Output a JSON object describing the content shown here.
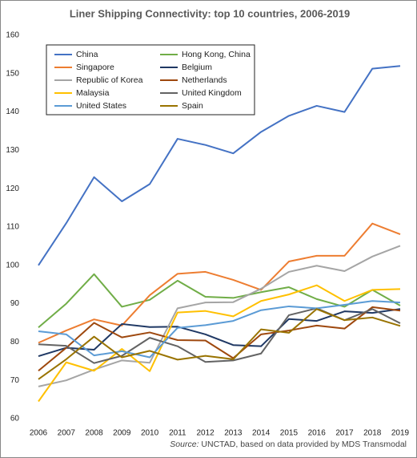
{
  "chart_data": {
    "type": "line",
    "title": "Liner Shipping Connectivity: top 10 countries, 2006-2019",
    "source_label": "Source:",
    "source": "UNCTAD, based on data provided by MDS Transmodal",
    "categories": [
      "2006",
      "2007",
      "2008",
      "2009",
      "2010",
      "2011",
      "2012",
      "2013",
      "2014",
      "2015",
      "2016",
      "2017",
      "2018",
      "2019"
    ],
    "ylim": [
      60,
      160
    ],
    "yticks": [
      60,
      70,
      80,
      90,
      100,
      110,
      120,
      130,
      140,
      150,
      160
    ],
    "grid": false,
    "series": [
      {
        "name": "China",
        "color": "#4472c4",
        "values": [
          100,
          111,
          123,
          116.7,
          121.2,
          133,
          131.4,
          129.2,
          134.8,
          139,
          141.6,
          140,
          151.3,
          152
        ]
      },
      {
        "name": "Hong Kong, China",
        "color": "#70ad47",
        "values": [
          83.8,
          90,
          97.7,
          89.2,
          91,
          96,
          91.8,
          91.5,
          93,
          94.3,
          91.2,
          89.2,
          93.6,
          89.5
        ]
      },
      {
        "name": "Singapore",
        "color": "#ed7d31",
        "values": [
          79.8,
          83,
          85.9,
          84.3,
          92.2,
          97.8,
          98.3,
          96.2,
          93.6,
          101,
          102.5,
          102.5,
          110.9,
          108.1
        ]
      },
      {
        "name": "Belgium",
        "color": "#1f3864",
        "values": [
          76.3,
          78.5,
          78,
          84.7,
          83.9,
          84,
          82,
          79.2,
          78.9,
          86,
          85.5,
          88,
          87.6,
          88.6
        ]
      },
      {
        "name": "Republic of Korea",
        "color": "#a5a5a5",
        "values": [
          68.4,
          70,
          72.8,
          75.2,
          74.6,
          88.8,
          90.3,
          90.4,
          93.9,
          98.3,
          99.9,
          98.5,
          102.3,
          105.1
        ]
      },
      {
        "name": "Netherlands",
        "color": "#9e480e",
        "values": [
          72.5,
          78.5,
          85,
          81.2,
          82.5,
          80.5,
          80.4,
          75.8,
          82,
          83,
          84.3,
          83.5,
          89.1,
          88.2
        ]
      },
      {
        "name": "Malaysia",
        "color": "#ffc000",
        "values": [
          64.5,
          74.7,
          72.5,
          78.2,
          72.4,
          87.7,
          88.1,
          86.7,
          90.7,
          92.4,
          94.8,
          90.7,
          93.6,
          93.8
        ]
      },
      {
        "name": "United Kingdom",
        "color": "#636363",
        "values": [
          79.4,
          79,
          74.5,
          76.4,
          81.1,
          78.9,
          74.8,
          75.2,
          77,
          87,
          88.8,
          85.7,
          88.6,
          84.9
        ]
      },
      {
        "name": "United States",
        "color": "#5b9bd5",
        "values": [
          82.8,
          82,
          76.5,
          77.6,
          76,
          83.7,
          84.4,
          85.5,
          88.3,
          89.3,
          88.8,
          89.7,
          90.7,
          90.3
        ]
      },
      {
        "name": "Spain",
        "color": "#997300",
        "values": [
          70.3,
          75.5,
          81.4,
          76,
          77.7,
          75.4,
          76.4,
          75.5,
          83.3,
          82.4,
          88.6,
          85.7,
          86.4,
          84.2
        ]
      }
    ]
  }
}
